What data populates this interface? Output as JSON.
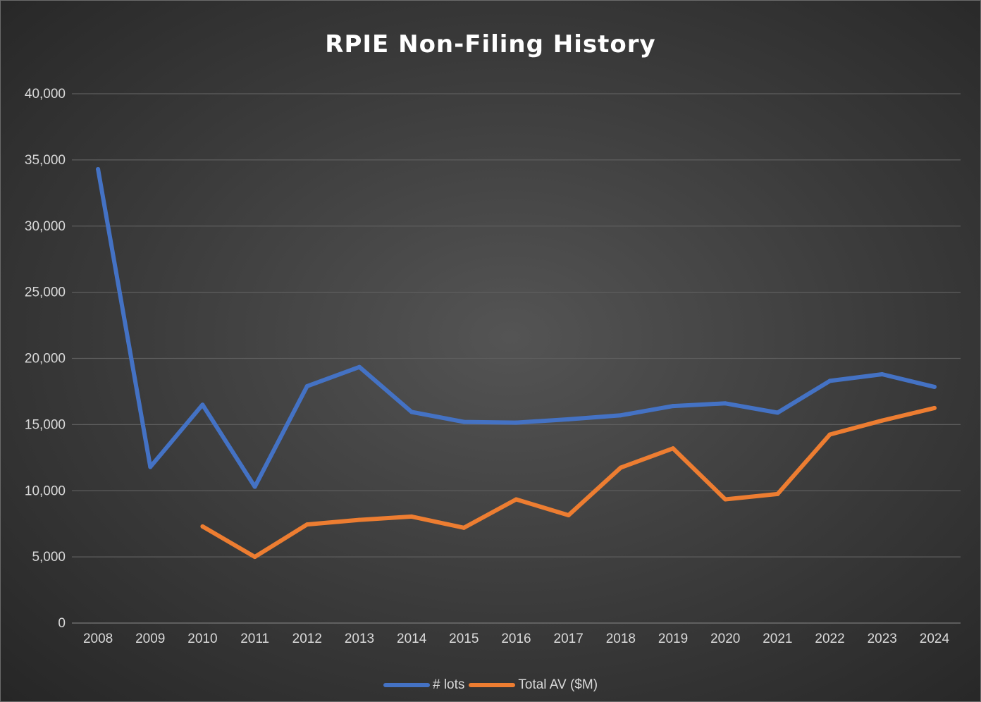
{
  "chart_data": {
    "type": "line",
    "title": "RPIE Non-Filing History",
    "xlabel": "",
    "ylabel": "",
    "categories": [
      "2008",
      "2009",
      "2010",
      "2011",
      "2012",
      "2013",
      "2014",
      "2015",
      "2016",
      "2017",
      "2018",
      "2019",
      "2020",
      "2021",
      "2022",
      "2023",
      "2024"
    ],
    "yticks": [
      "0",
      "5,000",
      "10,000",
      "15,000",
      "20,000",
      "25,000",
      "30,000",
      "35,000",
      "40,000"
    ],
    "ylim": [
      0,
      40000
    ],
    "grid": true,
    "legend_position": "bottom",
    "series": [
      {
        "name": "# lots",
        "color": "#4472c4",
        "values": [
          34300,
          11800,
          16500,
          10300,
          17900,
          19350,
          15950,
          15200,
          15150,
          15400,
          15700,
          16400,
          16600,
          15900,
          18300,
          18800,
          17850
        ]
      },
      {
        "name": "Total AV ($M)",
        "color": "#ed7d31",
        "values": [
          null,
          null,
          7300,
          5000,
          7450,
          7800,
          8050,
          7200,
          9350,
          8150,
          11750,
          13200,
          9350,
          9750,
          14250,
          15300,
          16250
        ]
      }
    ]
  }
}
